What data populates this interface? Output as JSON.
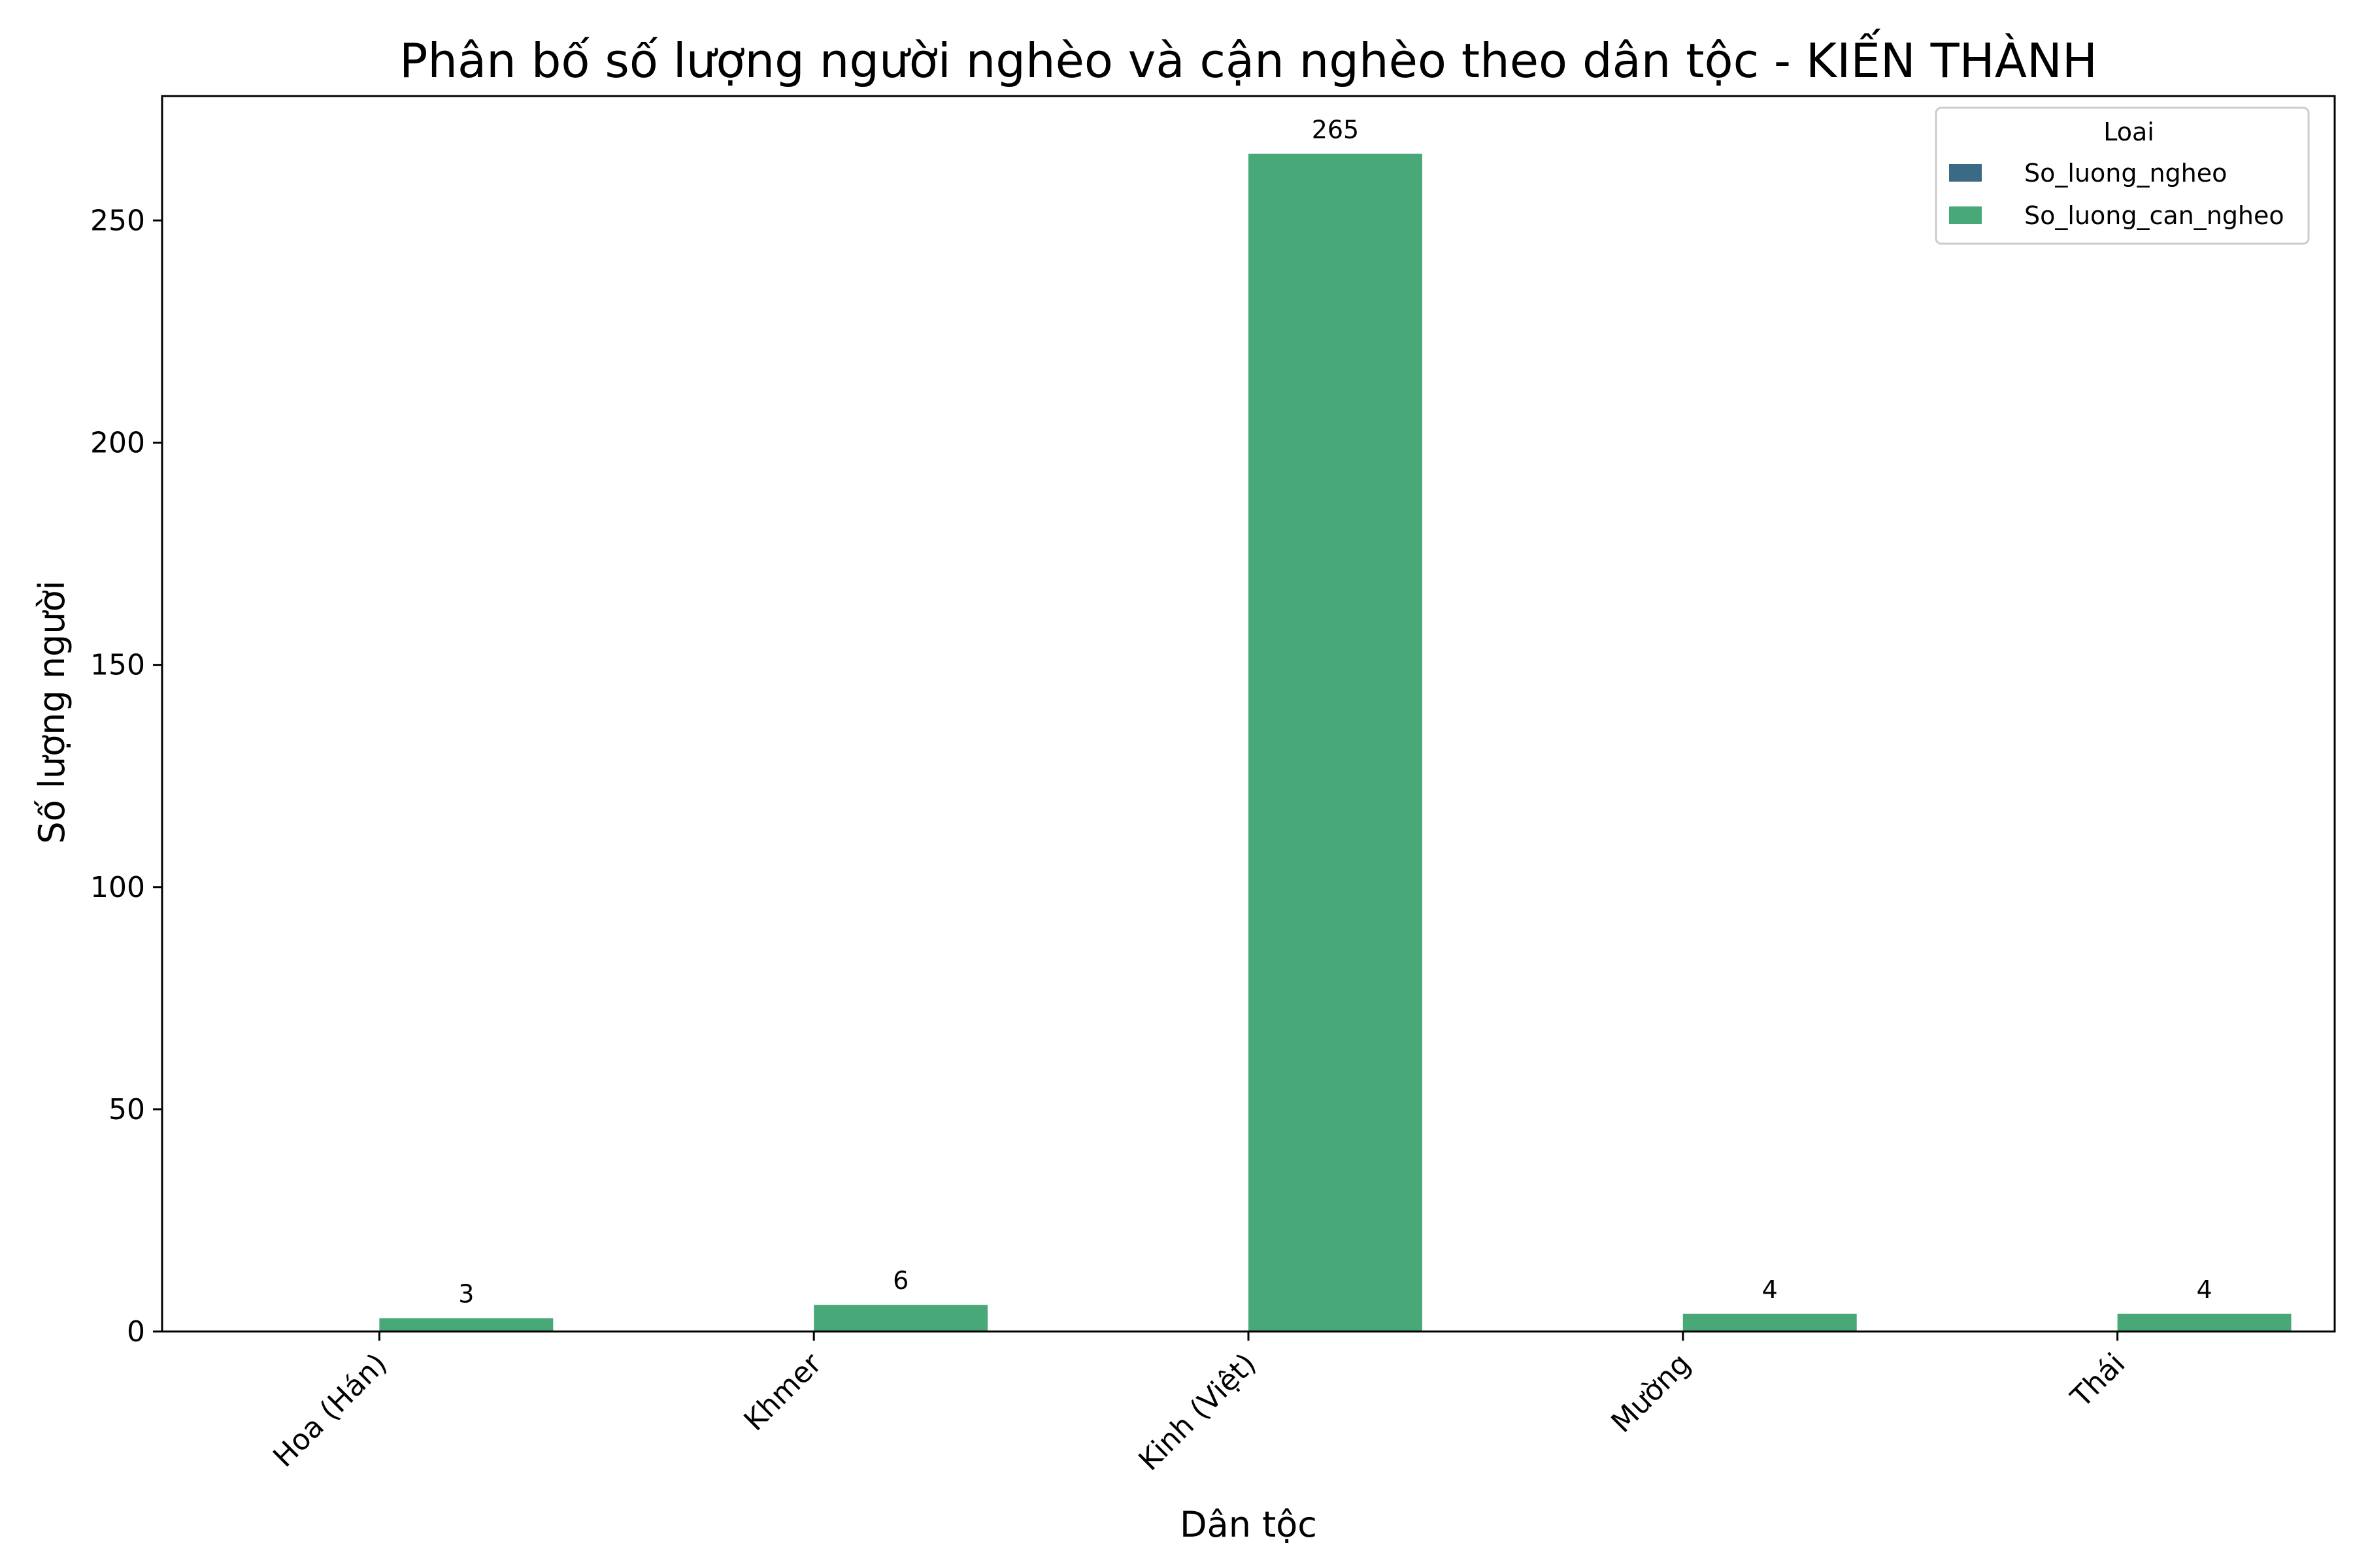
{
  "chart_data": {
    "type": "bar",
    "title": "Phân bố số lượng người nghèo và cận nghèo theo dân tộc - KIẾN THÀNH",
    "xlabel": "Dân tộc",
    "ylabel": "Số lượng người",
    "categories": [
      "Hoa (Hán)",
      "Khmer",
      "Kinh (Việt)",
      "Mường",
      "Thái"
    ],
    "series": [
      {
        "name": "So_luong_ngheo",
        "values": [
          0,
          0,
          0,
          0,
          0
        ],
        "color": "#3b6a87"
      },
      {
        "name": "So_luong_can_ngheo",
        "values": [
          3,
          6,
          265,
          4,
          4
        ],
        "color": "#48a878"
      }
    ],
    "data_labels": [
      "3",
      "6",
      "265",
      "4",
      "4"
    ],
    "ylim": [
      0,
      278
    ],
    "yticks": [
      0,
      50,
      100,
      150,
      200,
      250
    ],
    "ytick_labels": [
      "0",
      "50",
      "100",
      "150",
      "200",
      "250"
    ],
    "grid": false,
    "legend": {
      "title": "Loai",
      "placement": "top-right"
    }
  }
}
